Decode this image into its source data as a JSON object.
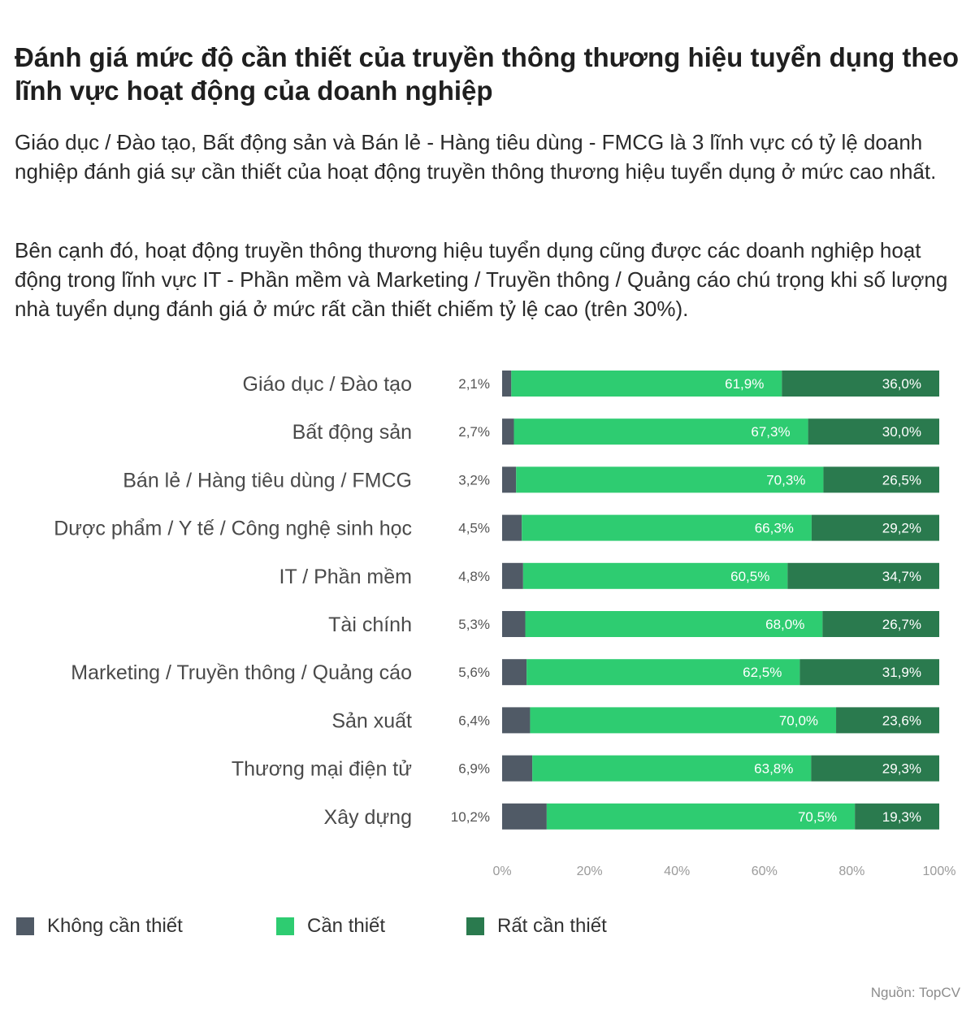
{
  "title": "Đánh giá mức độ cần thiết của truyền thông thương hiệu tuyển dụng theo lĩnh vực hoạt động của doanh nghiệp",
  "paragraph_1": "Giáo dục / Đào tạo, Bất động sản và Bán lẻ - Hàng tiêu dùng - FMCG là 3 lĩnh vực có tỷ lệ doanh nghiệp đánh giá sự cần thiết của hoạt động truyền thông thương hiệu tuyển dụng ở mức cao nhất.",
  "paragraph_2": "Bên cạnh đó, hoạt động truyền thông thương hiệu tuyển dụng cũng được các doanh nghiệp hoạt động trong lĩnh vực IT - Phần mềm và Marketing / Truyền thông / Quảng cáo chú trọng khi số lượng nhà tuyển dụng đánh giá ở mức rất cần thiết chiếm tỷ lệ cao (trên 30%).",
  "source": "Nguồn: TopCV",
  "colors": {
    "khong_can_thiet": "#505a66",
    "can_thiet": "#2ecc71",
    "rat_can_thiet": "#2a7a4e"
  },
  "chart_data": {
    "type": "bar",
    "orientation": "horizontal",
    "stacked": true,
    "categories": [
      "Giáo dục / Đào tạo",
      "Bất động sản",
      "Bán lẻ / Hàng tiêu dùng / FMCG",
      "Dược phẩm / Y tế / Công nghệ sinh học",
      "IT / Phần mềm",
      "Tài chính",
      "Marketing / Truyền thông / Quảng cáo",
      "Sản xuất",
      "Thương mại điện tử",
      "Xây dựng"
    ],
    "series": [
      {
        "name": "Không cần thiết",
        "color": "#505a66",
        "values": [
          2.1,
          2.7,
          3.2,
          4.5,
          4.8,
          5.3,
          5.6,
          6.4,
          6.9,
          10.2
        ],
        "labels": [
          "2,1%",
          "2,7%",
          "3,2%",
          "4,5%",
          "4,8%",
          "5,3%",
          "5,6%",
          "6,4%",
          "6,9%",
          "10,2%"
        ]
      },
      {
        "name": "Cần thiết",
        "color": "#2ecc71",
        "values": [
          61.9,
          67.3,
          70.3,
          66.3,
          60.5,
          68.0,
          62.5,
          70.0,
          63.8,
          70.5
        ],
        "labels": [
          "61,9%",
          "67,3%",
          "70,3%",
          "66,3%",
          "60,5%",
          "68,0%",
          "62,5%",
          "70,0%",
          "63,8%",
          "70,5%"
        ]
      },
      {
        "name": "Rất cần thiết",
        "color": "#2a7a4e",
        "values": [
          36.0,
          30.0,
          26.5,
          29.2,
          34.7,
          26.7,
          31.9,
          23.6,
          29.3,
          19.3
        ],
        "labels": [
          "36,0%",
          "30,0%",
          "26,5%",
          "29,2%",
          "34,7%",
          "26,7%",
          "31,9%",
          "23,6%",
          "29,3%",
          "19,3%"
        ]
      }
    ],
    "x_ticks": [
      "0%",
      "20%",
      "40%",
      "60%",
      "80%",
      "100%"
    ],
    "xlim": [
      0,
      100
    ],
    "grid": false,
    "legend_position": "bottom-left"
  }
}
